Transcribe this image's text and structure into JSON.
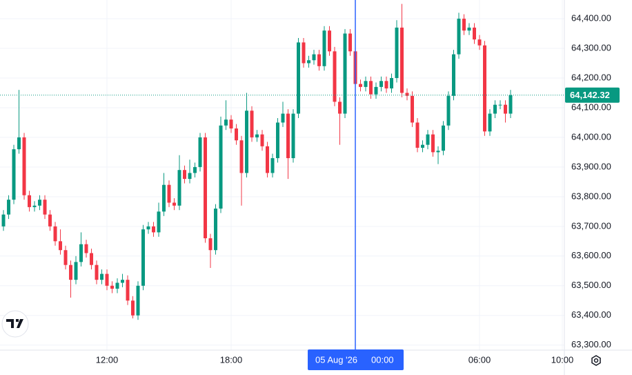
{
  "chart_data": {
    "type": "candlestick",
    "up_color": "#089981",
    "down_color": "#f23645",
    "open": [
      63700,
      63740,
      63790,
      63960,
      64000,
      63805,
      63765,
      63770,
      63790,
      63740,
      63700,
      63650,
      63620,
      63570,
      63520,
      63580,
      63640,
      63610,
      63570,
      63520,
      63540,
      63500,
      63490,
      63510,
      63520,
      63450,
      63400,
      63500,
      63690,
      63700,
      63680,
      63750,
      63840,
      63780,
      63770,
      63890,
      63860,
      63880,
      63900,
      64000,
      63660,
      63620,
      63760,
      64040,
      64060,
      64030,
      63990,
      63880,
      64090,
      64000,
      64010,
      63970,
      63880,
      63930,
      64050,
      64080,
      63930,
      64080,
      64320,
      64250,
      64260,
      64280,
      64240,
      64360,
      64290,
      64120,
      64080,
      64350,
      64290,
      64180,
      64170,
      64190,
      64145,
      64170,
      64190,
      64165,
      64200,
      64370,
      64150,
      64140,
      64050,
      63965,
      63975,
      64010,
      63950,
      63955,
      64040,
      64140,
      64280,
      64400,
      64360,
      64370,
      64330,
      64310,
      64020,
      64080,
      64110,
      64110,
      64080
    ],
    "high": [
      63755,
      63805,
      63975,
      64160,
      64015,
      63820,
      63785,
      63805,
      63805,
      63755,
      63715,
      63690,
      63635,
      63585,
      63600,
      63680,
      63655,
      63625,
      63585,
      63555,
      63555,
      63515,
      63525,
      63540,
      63535,
      63465,
      63515,
      63705,
      63715,
      63715,
      63780,
      63880,
      63855,
      63795,
      63940,
      63905,
      63925,
      63915,
      64015,
      64015,
      63675,
      63775,
      64070,
      64125,
      64075,
      64045,
      64005,
      64150,
      64105,
      64025,
      64025,
      63985,
      63945,
      64065,
      64120,
      64095,
      64095,
      64335,
      64335,
      64275,
      64295,
      64295,
      64375,
      64375,
      64305,
      64135,
      64365,
      64365,
      64305,
      64195,
      64205,
      64205,
      64185,
      64205,
      64205,
      64215,
      64395,
      64450,
      64165,
      64155,
      64065,
      63990,
      64025,
      64025,
      63970,
      64055,
      64155,
      64295,
      64420,
      64415,
      64385,
      64385,
      64345,
      64325,
      64095,
      64125,
      64125,
      64125,
      64160
    ],
    "low": [
      63685,
      63725,
      63775,
      63945,
      63790,
      63750,
      63750,
      63755,
      63725,
      63685,
      63635,
      63605,
      63555,
      63460,
      63505,
      63565,
      63595,
      63555,
      63505,
      63505,
      63485,
      63475,
      63475,
      63495,
      63435,
      63390,
      63385,
      63485,
      63675,
      63665,
      63665,
      63735,
      63765,
      63755,
      63755,
      63845,
      63845,
      63865,
      63885,
      63645,
      63560,
      63605,
      63745,
      64025,
      64015,
      63975,
      63770,
      63865,
      63985,
      63985,
      63955,
      63865,
      63865,
      63915,
      64035,
      63860,
      63915,
      64065,
      64235,
      64235,
      64245,
      64225,
      64225,
      64275,
      64105,
      63975,
      64065,
      64275,
      64165,
      64155,
      64155,
      64130,
      64130,
      64155,
      64150,
      64150,
      64185,
      64135,
      64125,
      64035,
      63950,
      63950,
      63960,
      63935,
      63910,
      63940,
      64025,
      64125,
      64265,
      64345,
      64345,
      64315,
      64295,
      64005,
      64005,
      64065,
      64095,
      64050,
      64065
    ],
    "close": [
      63740,
      63790,
      63960,
      64000,
      63805,
      63765,
      63770,
      63790,
      63740,
      63700,
      63650,
      63620,
      63570,
      63520,
      63580,
      63640,
      63610,
      63570,
      63520,
      63540,
      63500,
      63490,
      63510,
      63520,
      63450,
      63400,
      63500,
      63690,
      63700,
      63680,
      63750,
      63840,
      63780,
      63770,
      63890,
      63860,
      63880,
      63900,
      64000,
      63660,
      63620,
      63760,
      64040,
      64060,
      64030,
      63990,
      63880,
      64090,
      64000,
      64010,
      63970,
      63880,
      63930,
      64050,
      64080,
      63930,
      64080,
      64320,
      64250,
      64260,
      64280,
      64240,
      64360,
      64290,
      64120,
      64080,
      64350,
      64290,
      64180,
      64170,
      64190,
      64145,
      64170,
      64190,
      64165,
      64200,
      64370,
      64150,
      64140,
      64050,
      63965,
      63975,
      64010,
      63950,
      63955,
      64040,
      64140,
      64280,
      64400,
      64360,
      64370,
      64330,
      64310,
      64020,
      64080,
      64110,
      64110,
      64080,
      64142.32
    ],
    "xlim": [
      -0.67,
      108.4
    ],
    "xticks": [
      {
        "value": 20,
        "label": "12:00"
      },
      {
        "value": 44,
        "label": "18:00"
      },
      {
        "value": 92,
        "label": "06:00"
      },
      {
        "value": 108,
        "label": "10:00"
      }
    ],
    "ylim": [
      63283,
      64463
    ],
    "yticks": [
      {
        "value": 63300,
        "label": "63,300.00"
      },
      {
        "value": 63400,
        "label": "63,400.00"
      },
      {
        "value": 63500,
        "label": "63,500.00"
      },
      {
        "value": 63600,
        "label": "63,600.00"
      },
      {
        "value": 63700,
        "label": "63,700.00"
      },
      {
        "value": 63800,
        "label": "63,800.00"
      },
      {
        "value": 63900,
        "label": "63,900.00"
      },
      {
        "value": 64000,
        "label": "64,000.00"
      },
      {
        "value": 64100,
        "label": "64,100.00"
      },
      {
        "value": 64200,
        "label": "64,200.00"
      },
      {
        "value": 64300,
        "label": "64,300.00"
      },
      {
        "value": 64400,
        "label": "64,400.00"
      }
    ],
    "grid": true,
    "last_price": {
      "value": 64142.32,
      "label": "64,142.32"
    },
    "crosshair": {
      "x": 68,
      "date": "05 Aug '26",
      "time": "00:00"
    }
  }
}
